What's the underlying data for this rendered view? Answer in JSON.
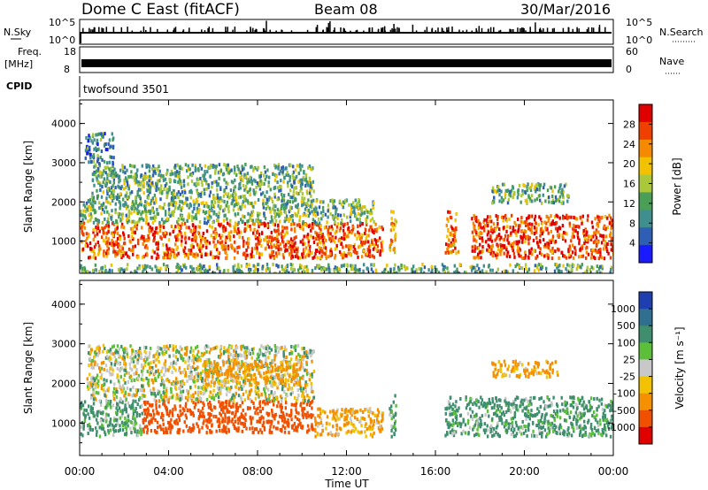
{
  "header": {
    "site": "Dome C East (fitACF)",
    "beam": "Beam 08",
    "date": "30/Mar/2016"
  },
  "status_panels": {
    "nsky": {
      "label": "N.Sky",
      "ticks": [
        "10^5",
        "10^0"
      ]
    },
    "freq": {
      "label_line1": "Freq.",
      "label_line2": "[MHz]",
      "ticks": [
        "18",
        "8"
      ]
    },
    "cpid": {
      "label": "CPID",
      "value": "twofsound 3501"
    },
    "nsearch": {
      "label": "N.Search",
      "ticks": [
        "10^5",
        "10^0"
      ]
    },
    "nave": {
      "label": "Nave",
      "ticks": [
        "60",
        "0"
      ]
    }
  },
  "axes": {
    "xlabel": "Time UT",
    "ylabel": "Slant Range [km]",
    "xticks": [
      "00:00",
      "04:00",
      "08:00",
      "12:00",
      "16:00",
      "20:00",
      "00:00"
    ],
    "yticks": [
      "1000",
      "2000",
      "3000",
      "4000"
    ]
  },
  "colorbars": {
    "power": {
      "label": "Power [dB]",
      "ticks": [
        "28",
        "24",
        "20",
        "16",
        "12",
        "8",
        "4"
      ]
    },
    "velocity": {
      "label": "Velocity [m s⁻¹]",
      "ticks": [
        "1000",
        "500",
        "100",
        "25",
        "-25",
        "-100",
        "-500",
        "-1000"
      ]
    }
  },
  "chart_data": [
    {
      "type": "heatmap",
      "name": "power",
      "xlabel": "Time UT",
      "ylabel": "Slant Range [km]",
      "xlim": [
        0,
        24
      ],
      "ylim": [
        180,
        4600
      ],
      "colorbar": {
        "label": "Power [dB]",
        "range": [
          0,
          32
        ],
        "ticks": [
          4,
          8,
          12,
          16,
          20,
          24,
          28
        ]
      },
      "regions": [
        {
          "time": [
            0,
            13.6
          ],
          "range": [
            600,
            1500
          ],
          "value": 26
        },
        {
          "time": [
            0,
            13.2
          ],
          "range": [
            1500,
            2100
          ],
          "value": 13
        },
        {
          "time": [
            0.5,
            10.5
          ],
          "range": [
            2100,
            3000
          ],
          "value": 12
        },
        {
          "time": [
            0.2,
            1.5
          ],
          "range": [
            3000,
            3800
          ],
          "value": 8
        },
        {
          "time": [
            13.9,
            14.2
          ],
          "range": [
            700,
            1800
          ],
          "value": 20
        },
        {
          "time": [
            16.4,
            17.0
          ],
          "range": [
            700,
            1800
          ],
          "value": 24
        },
        {
          "time": [
            17.6,
            24
          ],
          "range": [
            600,
            1700
          ],
          "value": 27
        },
        {
          "time": [
            18.5,
            22
          ],
          "range": [
            2000,
            2500
          ],
          "value": 12
        },
        {
          "time": [
            0,
            24
          ],
          "range": [
            200,
            450
          ],
          "value": 12
        }
      ]
    },
    {
      "type": "heatmap",
      "name": "velocity",
      "xlabel": "Time UT",
      "ylabel": "Slant Range [km]",
      "xlim": [
        0,
        24
      ],
      "ylim": [
        180,
        4600
      ],
      "colorbar": {
        "label": "Velocity [m s⁻¹]",
        "range": [
          -1200,
          1200
        ],
        "ticks": [
          1000,
          500,
          100,
          25,
          -25,
          -100,
          -500,
          -1000
        ]
      },
      "regions": [
        {
          "time": [
            0,
            2.8
          ],
          "range": [
            700,
            1600
          ],
          "value": 100
        },
        {
          "time": [
            2.8,
            10.5
          ],
          "range": [
            800,
            1600
          ],
          "value": -500
        },
        {
          "time": [
            10.5,
            13.6
          ],
          "range": [
            700,
            1400
          ],
          "value": -100
        },
        {
          "time": [
            0.3,
            10.5
          ],
          "range": [
            1600,
            3000
          ],
          "value": 0
        },
        {
          "time": [
            5.5,
            10.0
          ],
          "range": [
            2000,
            2600
          ],
          "value": -100
        },
        {
          "time": [
            13.9,
            14.2
          ],
          "range": [
            700,
            1800
          ],
          "value": 100
        },
        {
          "time": [
            16.4,
            24
          ],
          "range": [
            700,
            1700
          ],
          "value": 100
        },
        {
          "time": [
            18.5,
            21.5
          ],
          "range": [
            2200,
            2600
          ],
          "value": -100
        }
      ]
    }
  ]
}
